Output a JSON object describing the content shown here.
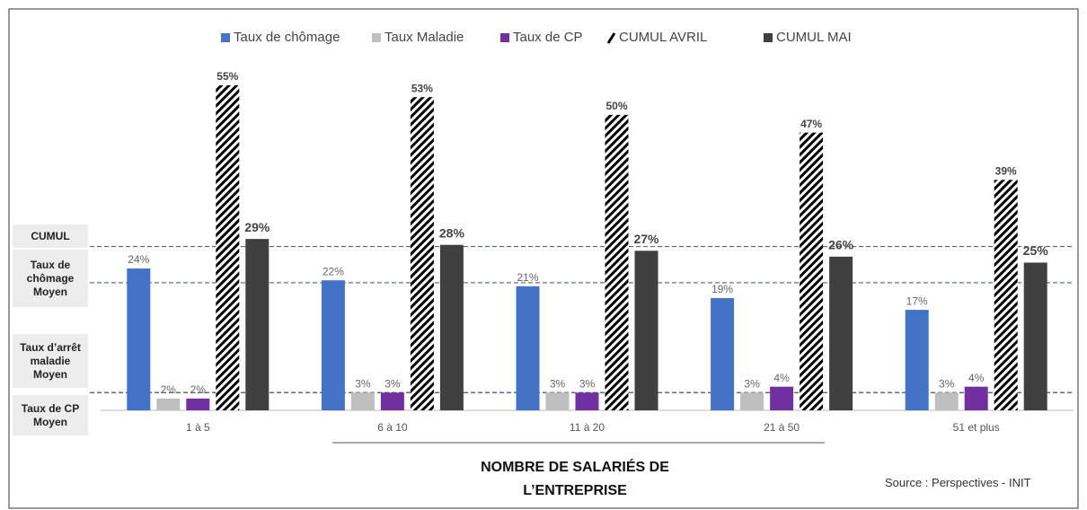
{
  "chart_data": {
    "type": "bar",
    "categories": [
      "1 à 5",
      "6 à 10",
      "11 à 20",
      "21 à 50",
      "51 et plus"
    ],
    "series": [
      {
        "name": "Taux de chômage",
        "color": "#4472c4",
        "values": [
          24,
          22,
          21,
          19,
          17
        ],
        "value_labels": [
          "24%",
          "22%",
          "21%",
          "19%",
          "17%"
        ]
      },
      {
        "name": "Taux Maladie",
        "color": "#bfbfbf",
        "values": [
          2,
          3,
          3,
          3,
          3
        ],
        "value_labels": [
          "2%",
          "3%",
          "3%",
          "3%",
          "3%"
        ]
      },
      {
        "name": "Taux de CP",
        "color": "#7030a0",
        "values": [
          2,
          3,
          3,
          4,
          4
        ],
        "value_labels": [
          "2%",
          "3%",
          "3%",
          "4%",
          "4%"
        ]
      },
      {
        "name": "CUMUL AVRIL",
        "color": "#000000",
        "pattern": "diagonal",
        "values": [
          55,
          53,
          50,
          47,
          39
        ],
        "value_labels": [
          "55%",
          "53%",
          "50%",
          "47%",
          "39%"
        ]
      },
      {
        "name": "CUMUL MAI",
        "color": "#404040",
        "values": [
          29,
          28,
          27,
          26,
          25
        ],
        "value_labels": [
          "29%",
          "28%",
          "27%",
          "26%",
          "25%"
        ]
      }
    ],
    "ylim": [
      0,
      55
    ],
    "reference_lines": [
      {
        "label": "CUMUL",
        "value": 27.7
      },
      {
        "label": "Taux de chômage Moyen",
        "value": 21.6
      },
      {
        "label": "Taux d’arrêt maladie Moyen",
        "value": 3
      },
      {
        "label": "Taux de CP Moyen",
        "value": 3
      }
    ],
    "x_label": "NOMBRE DE SALARIÉS DE L’ENTREPRISE",
    "source": "Source : Perspectives - INIT",
    "legend": "top"
  }
}
